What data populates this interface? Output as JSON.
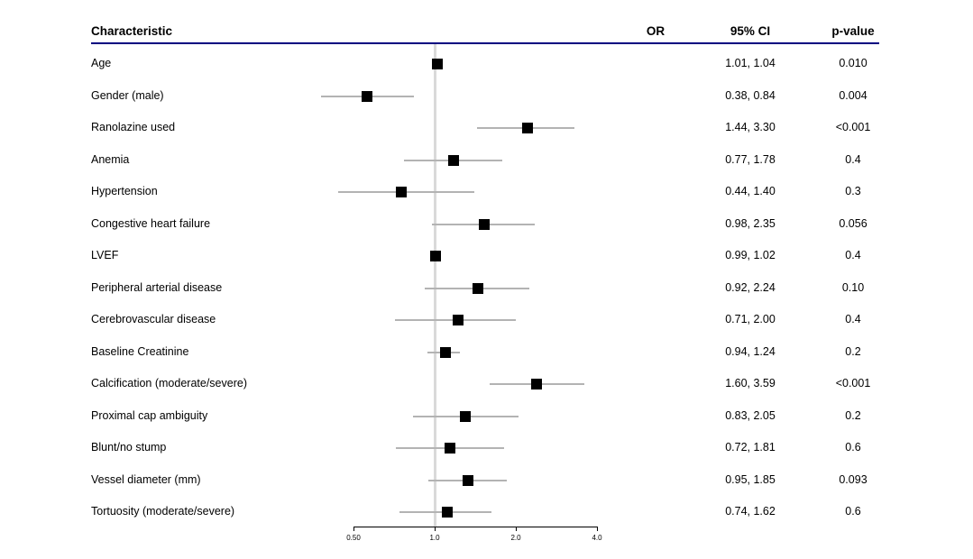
{
  "table": {
    "headers": {
      "characteristic": "Characteristic",
      "or": "OR",
      "ci": "95% CI",
      "p": "p-value"
    }
  },
  "chart_data": {
    "type": "scatter",
    "subtype": "forest-plot",
    "xscale": "log2",
    "xlim": [
      0.5,
      4.0
    ],
    "reference_line": 1.0,
    "grid": false,
    "axis_ticks": [
      {
        "value": 0.5,
        "label": "0.50"
      },
      {
        "value": 1.0,
        "label": "1.0"
      },
      {
        "value": 2.0,
        "label": "2.0"
      },
      {
        "value": 4.0,
        "label": "4.0"
      }
    ],
    "rows": [
      {
        "label": "Age",
        "or": 1.02,
        "ci_low": 1.01,
        "ci_high": 1.04,
        "ci_text": "1.01, 1.04",
        "p": "0.010"
      },
      {
        "label": "Gender (male)",
        "or": 0.56,
        "ci_low": 0.38,
        "ci_high": 0.84,
        "ci_text": "0.38, 0.84",
        "p": "0.004"
      },
      {
        "label": "Ranolazine used",
        "or": 2.21,
        "ci_low": 1.44,
        "ci_high": 3.3,
        "ci_text": "1.44, 3.30",
        "p": "<0.001"
      },
      {
        "label": "Anemia",
        "or": 1.18,
        "ci_low": 0.77,
        "ci_high": 1.78,
        "ci_text": "0.77, 1.78",
        "p": "0.4"
      },
      {
        "label": "Hypertension",
        "or": 0.75,
        "ci_low": 0.44,
        "ci_high": 1.4,
        "ci_text": "0.44, 1.40",
        "p": "0.3"
      },
      {
        "label": "Congestive heart failure",
        "or": 1.53,
        "ci_low": 0.98,
        "ci_high": 2.35,
        "ci_text": "0.98, 2.35",
        "p": "0.056"
      },
      {
        "label": "LVEF",
        "or": 1.01,
        "ci_low": 0.99,
        "ci_high": 1.02,
        "ci_text": "0.99, 1.02",
        "p": "0.4"
      },
      {
        "label": "Peripheral arterial disease",
        "or": 1.45,
        "ci_low": 0.92,
        "ci_high": 2.24,
        "ci_text": "0.92, 2.24",
        "p": "0.10"
      },
      {
        "label": "Cerebrovascular disease",
        "or": 1.22,
        "ci_low": 0.71,
        "ci_high": 2.0,
        "ci_text": "0.71, 2.00",
        "p": "0.4"
      },
      {
        "label": "Baseline Creatinine",
        "or": 1.1,
        "ci_low": 0.94,
        "ci_high": 1.24,
        "ci_text": "0.94, 1.24",
        "p": "0.2"
      },
      {
        "label": "Calcification (moderate/severe)",
        "or": 2.38,
        "ci_low": 1.6,
        "ci_high": 3.59,
        "ci_text": "1.60, 3.59",
        "p": "<0.001"
      },
      {
        "label": "Proximal cap ambiguity",
        "or": 1.3,
        "ci_low": 0.83,
        "ci_high": 2.05,
        "ci_text": "0.83, 2.05",
        "p": "0.2"
      },
      {
        "label": "Blunt/no stump",
        "or": 1.14,
        "ci_low": 0.72,
        "ci_high": 1.81,
        "ci_text": "0.72, 1.81",
        "p": "0.6"
      },
      {
        "label": "Vessel diameter (mm)",
        "or": 1.33,
        "ci_low": 0.95,
        "ci_high": 1.85,
        "ci_text": "0.95, 1.85",
        "p": "0.093"
      },
      {
        "label": "Tortuosity (moderate/severe)",
        "or": 1.11,
        "ci_low": 0.74,
        "ci_high": 1.62,
        "ci_text": "0.74, 1.62",
        "p": "0.6"
      }
    ],
    "colors": {
      "marker": "#000000",
      "ci_line": "#b3b3b3",
      "reference_line": "#d9d9d9",
      "header_rule": "#000080",
      "axis": "#000000",
      "text": "#000000"
    }
  }
}
